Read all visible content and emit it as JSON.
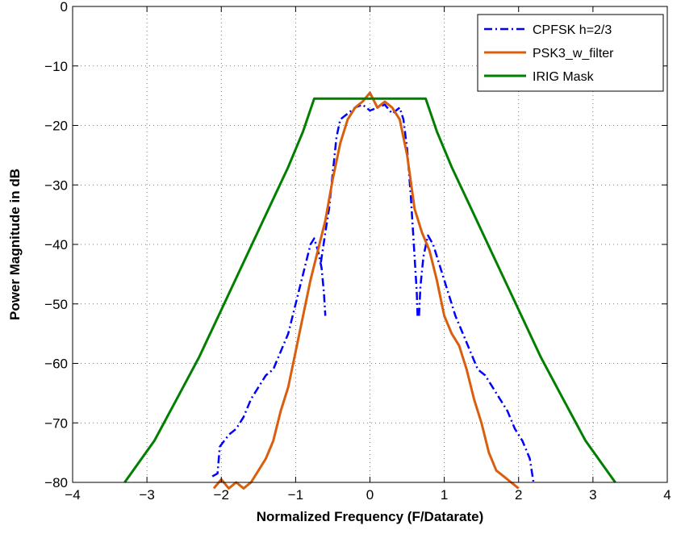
{
  "chart_data": {
    "type": "line",
    "title": "",
    "xlabel": "Normalized Frequency (F/Datarate)",
    "ylabel": "Power Magnitude in dB",
    "xlim": [
      -4,
      4
    ],
    "ylim": [
      -80,
      0
    ],
    "xticks": [
      -4,
      -3,
      -2,
      -1,
      0,
      1,
      2,
      3,
      4
    ],
    "yticks": [
      0,
      -10,
      -20,
      -30,
      -40,
      -50,
      -60,
      -70,
      -80
    ],
    "xtick_labels": [
      "−4",
      "−3",
      "−2",
      "−1",
      "0",
      "1",
      "2",
      "3",
      "4"
    ],
    "ytick_labels": [
      "0",
      "−10",
      "−20",
      "−30",
      "−40",
      "−50",
      "−60",
      "−70",
      "−80"
    ],
    "grid": true,
    "legend_position": "top-right",
    "series": [
      {
        "name": "CPFSK h=2/3",
        "color": "#0000ff",
        "style": "dash-dot",
        "points": [
          [
            -2.12,
            -79
          ],
          [
            -2.05,
            -78.5
          ],
          [
            -2.02,
            -74
          ],
          [
            -1.9,
            -72
          ],
          [
            -1.8,
            -71
          ],
          [
            -1.7,
            -69
          ],
          [
            -1.6,
            -66
          ],
          [
            -1.5,
            -64
          ],
          [
            -1.4,
            -62
          ],
          [
            -1.3,
            -61
          ],
          [
            -1.2,
            -58
          ],
          [
            -1.1,
            -55
          ],
          [
            -1.0,
            -50
          ],
          [
            -0.9,
            -45
          ],
          [
            -0.8,
            -40
          ],
          [
            -0.75,
            -39
          ],
          [
            -0.7,
            -41
          ],
          [
            -0.65,
            -44
          ],
          [
            -0.62,
            -48
          ],
          [
            -0.6,
            -52
          ],
          null,
          [
            -0.66,
            -43
          ],
          [
            -0.6,
            -38
          ],
          [
            -0.55,
            -34
          ],
          [
            -0.5,
            -28
          ],
          [
            -0.45,
            -22
          ],
          [
            -0.4,
            -19
          ],
          [
            -0.3,
            -18
          ],
          [
            -0.2,
            -17
          ],
          [
            -0.1,
            -16.5
          ],
          [
            0,
            -17.5
          ],
          [
            0.1,
            -17
          ],
          [
            0.2,
            -16.5
          ],
          [
            0.3,
            -18
          ],
          [
            0.4,
            -17
          ],
          [
            0.45,
            -19
          ],
          [
            0.5,
            -24
          ],
          [
            0.55,
            -32
          ],
          [
            0.6,
            -42
          ],
          [
            0.63,
            -48
          ],
          [
            0.64,
            -52
          ],
          null,
          [
            0.66,
            -52
          ],
          [
            0.68,
            -47
          ],
          [
            0.72,
            -42
          ],
          [
            0.78,
            -38.5
          ],
          [
            0.85,
            -40
          ],
          [
            0.95,
            -44
          ],
          [
            1.05,
            -48
          ],
          [
            1.15,
            -52
          ],
          [
            1.25,
            -55
          ],
          [
            1.35,
            -58
          ],
          [
            1.45,
            -61
          ],
          [
            1.55,
            -62
          ],
          [
            1.65,
            -64
          ],
          [
            1.75,
            -66
          ],
          [
            1.85,
            -68
          ],
          [
            1.95,
            -71
          ],
          [
            2.05,
            -73
          ],
          [
            2.15,
            -76
          ],
          [
            2.2,
            -80
          ]
        ]
      },
      {
        "name": "PSK3_w_filter",
        "color": "#d95f0e",
        "style": "solid",
        "points": [
          [
            -2.1,
            -81
          ],
          [
            -2.0,
            -79.5
          ],
          [
            -1.9,
            -81
          ],
          [
            -1.8,
            -80
          ],
          [
            -1.7,
            -81
          ],
          [
            -1.6,
            -80
          ],
          [
            -1.5,
            -78
          ],
          [
            -1.4,
            -76
          ],
          [
            -1.3,
            -73
          ],
          [
            -1.2,
            -68
          ],
          [
            -1.1,
            -64
          ],
          [
            -1.0,
            -58
          ],
          [
            -0.9,
            -52
          ],
          [
            -0.8,
            -46
          ],
          [
            -0.7,
            -41
          ],
          [
            -0.6,
            -36
          ],
          [
            -0.5,
            -29
          ],
          [
            -0.4,
            -23
          ],
          [
            -0.3,
            -19
          ],
          [
            -0.2,
            -17
          ],
          [
            -0.1,
            -16
          ],
          [
            0,
            -14.5
          ],
          [
            0.1,
            -17
          ],
          [
            0.2,
            -16
          ],
          [
            0.3,
            -17
          ],
          [
            0.4,
            -19
          ],
          [
            0.5,
            -25
          ],
          [
            0.6,
            -34
          ],
          [
            0.7,
            -38
          ],
          [
            0.8,
            -41
          ],
          [
            0.9,
            -46
          ],
          [
            1.0,
            -52
          ],
          [
            1.1,
            -55
          ],
          [
            1.2,
            -57
          ],
          [
            1.3,
            -61
          ],
          [
            1.4,
            -66
          ],
          [
            1.5,
            -70
          ],
          [
            1.6,
            -75
          ],
          [
            1.7,
            -78
          ],
          [
            1.8,
            -79
          ],
          [
            1.9,
            -80
          ],
          [
            2.0,
            -81
          ]
        ]
      },
      {
        "name": "IRIG Mask",
        "color": "#007f00",
        "style": "solid",
        "points": [
          [
            -3.3,
            -80
          ],
          [
            -2.9,
            -73
          ],
          [
            -2.6,
            -66
          ],
          [
            -2.3,
            -59
          ],
          [
            -2.0,
            -51
          ],
          [
            -1.7,
            -43
          ],
          [
            -1.4,
            -35
          ],
          [
            -1.1,
            -27
          ],
          [
            -0.9,
            -21
          ],
          [
            -0.75,
            -15.5
          ],
          [
            0.75,
            -15.5
          ],
          [
            0.9,
            -21
          ],
          [
            1.1,
            -27
          ],
          [
            1.4,
            -35
          ],
          [
            1.7,
            -43
          ],
          [
            2.0,
            -51
          ],
          [
            2.3,
            -59
          ],
          [
            2.6,
            -66
          ],
          [
            2.9,
            -73
          ],
          [
            3.3,
            -80
          ]
        ]
      }
    ]
  }
}
